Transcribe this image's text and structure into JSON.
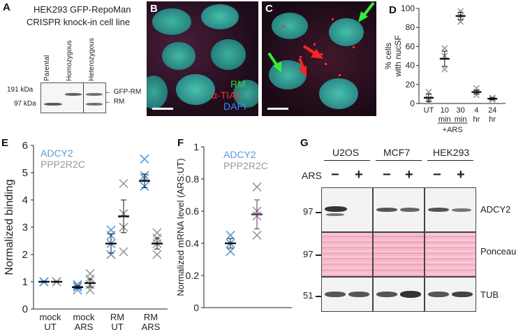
{
  "panel_A": {
    "letter": "A",
    "title_line1": "HEK293 GFP-RepoMan",
    "title_line2": "CRISPR knock-in cell line",
    "lanes": [
      "Parental",
      "Homozygous",
      "Heterozygous"
    ],
    "markers": [
      "191 kDa",
      "97 kDa"
    ],
    "band_labels": [
      "GFP-RM",
      "RM"
    ]
  },
  "panel_B": {
    "letter": "B",
    "legend": [
      "RM",
      "α-TIA1",
      "DAPI"
    ],
    "legend_colors": [
      "#3cd23c",
      "#ff3030",
      "#3a8fff"
    ]
  },
  "panel_C": {
    "letter": "C",
    "arrow_colors": [
      "#33ee33",
      "#ff2222"
    ]
  },
  "panel_D": {
    "letter": "D",
    "ylabel_line1": "% cells",
    "ylabel_line2": "with nucSF",
    "yticks": [
      "0",
      "20",
      "40",
      "60",
      "80",
      "100"
    ],
    "xlabels": [
      {
        "top": "UT",
        "bottom": ""
      },
      {
        "top": "10",
        "bottom": "min"
      },
      {
        "top": "30",
        "bottom": "min"
      },
      {
        "top": "4",
        "bottom": "hr"
      },
      {
        "top": "24",
        "bottom": "hr"
      }
    ],
    "group_label": "+ARS"
  },
  "panel_E": {
    "letter": "E",
    "ylabel": "Normalized binding",
    "yticks": [
      "0",
      "1",
      "2",
      "3",
      "4",
      "5",
      "6"
    ],
    "legend": [
      "ADCY2",
      "PPP2R2C"
    ],
    "xlabels": [
      {
        "top": "mock",
        "bottom": "UT"
      },
      {
        "top": "mock",
        "bottom": "ARS"
      },
      {
        "top": "RM",
        "bottom": "UT"
      },
      {
        "top": "RM",
        "bottom": "ARS"
      }
    ]
  },
  "panel_F": {
    "letter": "F",
    "ylabel": "Normalized mRNA level (ARS:UT)",
    "yticks": [
      "0",
      "0.2",
      "0.4",
      "0.6",
      "0.8",
      "1"
    ],
    "legend": [
      "ADCY2",
      "PPP2R2C"
    ]
  },
  "panel_G": {
    "letter": "G",
    "cell_lines": [
      "U2OS",
      "MCF7",
      "HEK293"
    ],
    "treatment_label": "ARS",
    "treatment_signs": [
      "−",
      "+"
    ],
    "row_labels": [
      "ADCY2",
      "Ponceau",
      "TUB"
    ],
    "markers": [
      "97",
      "97",
      "51"
    ]
  },
  "chart_data": [
    {
      "type": "scatter",
      "panel": "D",
      "categories": [
        "UT",
        "10 min",
        "30 min",
        "4 hr",
        "24 hr"
      ],
      "ylabel": "% cells with nucSF",
      "ylim": [
        0,
        100
      ],
      "series": [
        {
          "points": [
            [
              5,
              12,
              2
            ],
            [
              50,
              58,
              36
            ],
            [
              92,
              97,
              86
            ],
            [
              12,
              16,
              9
            ],
            [
              5,
              4,
              6
            ]
          ],
          "means": [
            6,
            47,
            92,
            12,
            5
          ],
          "sem": [
            4,
            8,
            4,
            2,
            1
          ]
        }
      ]
    },
    {
      "type": "scatter",
      "panel": "E",
      "categories": [
        "mock UT",
        "mock ARS",
        "RM UT",
        "RM ARS"
      ],
      "ylabel": "Normalized binding",
      "ylim": [
        0,
        6
      ],
      "colors": [
        "#5b9bd5",
        "#9a9a9a"
      ],
      "series": [
        {
          "name": "ADCY2",
          "points": [
            [
              1.0,
              1.0,
              1.0,
              1.0
            ],
            [
              0.7,
              0.8,
              0.9,
              0.85
            ],
            [
              2.0,
              2.4,
              2.9,
              2.7
            ],
            [
              4.5,
              4.8,
              4.9,
              5.5
            ]
          ],
          "means": [
            1.0,
            0.8,
            2.4,
            4.7
          ],
          "sem": [
            0.02,
            0.05,
            0.35,
            0.25
          ]
        },
        {
          "name": "PPP2R2C",
          "points": [
            [
              1.0,
              1.0,
              1.0,
              1.0
            ],
            [
              0.7,
              0.9,
              1.1,
              1.3
            ],
            [
              2.1,
              3.0,
              3.5,
              4.6
            ],
            [
              2.0,
              2.4,
              2.6,
              2.8
            ]
          ],
          "means": [
            1.0,
            0.95,
            3.4,
            2.4
          ],
          "sem": [
            0.02,
            0.15,
            0.6,
            0.2
          ]
        }
      ]
    },
    {
      "type": "scatter",
      "panel": "F",
      "categories": [
        "ADCY2",
        "PPP2R2C"
      ],
      "ylabel": "Normalized mRNA level (ARS:UT)",
      "ylim": [
        0,
        1
      ],
      "colors": [
        "#5b9bd5",
        "#9a9a9a"
      ],
      "series": [
        {
          "name": "ADCY2",
          "points": [
            0.45,
            0.4,
            0.35
          ],
          "mean": 0.4,
          "sem": 0.03
        },
        {
          "name": "PPP2R2C",
          "points": [
            0.75,
            0.6,
            0.45,
            0.57
          ],
          "mean": 0.58,
          "sem": 0.09
        }
      ]
    }
  ]
}
